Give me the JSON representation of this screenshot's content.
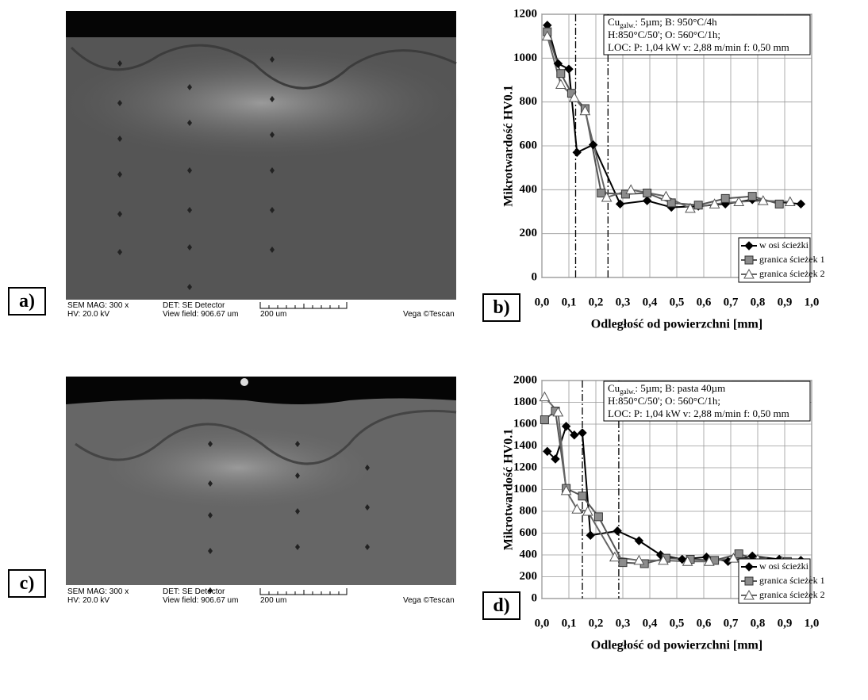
{
  "panel_labels": [
    "a)",
    "b)",
    "c)",
    "d)"
  ],
  "sem_images": [
    {
      "mag": "SEM MAG: 300 x",
      "det": "DET: SE Detector",
      "hv": "HV:  20.0 kV",
      "view_field": "View field: 906.67 um",
      "scale": "200 um",
      "brand": "Vega ©Tescan"
    },
    {
      "mag": "SEM MAG: 300 x",
      "det": "DET: SE Detector",
      "hv": "HV:  20.0 kV",
      "view_field": "View field: 906.67 um",
      "scale": "200 um",
      "brand": "Vega ©Tescan"
    }
  ],
  "chart_data": [
    {
      "type": "line",
      "ylabel": "Mikrotwardość HV0.1",
      "xlabel": "Odległość od powierzchni [mm]",
      "annotation": {
        "main": "Cu",
        "sub": "galw.",
        "line1": ": 5µm; B: 950°C/4h",
        "line2": "H:850°C/50'; O: 560°C/1h;",
        "line3": "LOC: P: 1,04 kW  v: 2,88 m/min f: 0,50 mm"
      },
      "xlim": [
        0,
        1
      ],
      "ylim": [
        0,
        1200
      ],
      "grid": true,
      "legend": "lower right",
      "xticks": [
        {
          "value": 0,
          "label": "0,0"
        },
        {
          "value": 0.1,
          "label": "0,1"
        },
        {
          "value": 0.2,
          "label": "0,2"
        },
        {
          "value": 0.3,
          "label": "0,3"
        },
        {
          "value": 0.4,
          "label": "0,4"
        },
        {
          "value": 0.5,
          "label": "0,5"
        },
        {
          "value": 0.6,
          "label": "0,6"
        },
        {
          "value": 0.7,
          "label": "0,7"
        },
        {
          "value": 0.8,
          "label": "0,8"
        },
        {
          "value": 0.9,
          "label": "0,9"
        },
        {
          "value": 1,
          "label": "1,0"
        }
      ],
      "yticks": [
        0,
        200,
        400,
        600,
        800,
        1000,
        1200
      ],
      "vlines": [
        0.125,
        0.245
      ],
      "series": [
        {
          "name": "w osi ścieżki",
          "color": "#000000",
          "marker": "diamond",
          "x": [
            0.02,
            0.06,
            0.1,
            0.13,
            0.19,
            0.29,
            0.39,
            0.48,
            0.58,
            0.68,
            0.78,
            0.96
          ],
          "values": [
            1150,
            975,
            950,
            570,
            605,
            335,
            350,
            320,
            325,
            335,
            355,
            335
          ]
        },
        {
          "name": "granica ścieżek 1",
          "color": "#555555",
          "marker": "square",
          "x": [
            0.02,
            0.07,
            0.11,
            0.16,
            0.22,
            0.31,
            0.39,
            0.48,
            0.58,
            0.68,
            0.78,
            0.88
          ],
          "values": [
            1120,
            930,
            840,
            770,
            385,
            380,
            385,
            340,
            330,
            360,
            370,
            335
          ]
        },
        {
          "name": "granica ścieżek 2",
          "color": "#666666",
          "marker": "triangle",
          "x": [
            0.02,
            0.07,
            0.12,
            0.16,
            0.24,
            0.33,
            0.46,
            0.55,
            0.64,
            0.73,
            0.82,
            0.92
          ],
          "values": [
            1100,
            880,
            820,
            760,
            365,
            400,
            370,
            315,
            335,
            345,
            350,
            345
          ]
        }
      ]
    },
    {
      "type": "line",
      "ylabel": "Mikrotwardość HV0.1",
      "xlabel": "Odległość od powierzchni [mm]",
      "annotation": {
        "main": "Cu",
        "sub": "galw.",
        "line1": ": 5µm; B: pasta 40µm",
        "line2": "H:850°C/50'; O: 560°C/1h;",
        "line3": "LOC: P: 1,04 kW  v: 2,88 m/min f: 0,50 mm"
      },
      "xlim": [
        0,
        1
      ],
      "ylim": [
        0,
        2000
      ],
      "grid": true,
      "legend": "lower right",
      "xticks": [
        {
          "value": 0,
          "label": "0,0"
        },
        {
          "value": 0.1,
          "label": "0,1"
        },
        {
          "value": 0.2,
          "label": "0,2"
        },
        {
          "value": 0.3,
          "label": "0,3"
        },
        {
          "value": 0.4,
          "label": "0,4"
        },
        {
          "value": 0.5,
          "label": "0,5"
        },
        {
          "value": 0.6,
          "label": "0,6"
        },
        {
          "value": 0.7,
          "label": "0,7"
        },
        {
          "value": 0.8,
          "label": "0,8"
        },
        {
          "value": 0.9,
          "label": "0,9"
        },
        {
          "value": 1,
          "label": "1,0"
        }
      ],
      "yticks": [
        0,
        200,
        400,
        600,
        800,
        1000,
        1200,
        1400,
        1600,
        1800,
        2000
      ],
      "vlines": [
        0.15,
        0.285
      ],
      "series": [
        {
          "name": "w osi ścieżki",
          "color": "#000000",
          "marker": "diamond",
          "x": [
            0.02,
            0.05,
            0.09,
            0.12,
            0.15,
            0.18,
            0.28,
            0.36,
            0.44,
            0.52,
            0.61,
            0.69,
            0.78,
            0.88,
            0.96
          ],
          "values": [
            1350,
            1280,
            1580,
            1500,
            1520,
            580,
            620,
            530,
            400,
            360,
            380,
            340,
            390,
            360,
            350
          ]
        },
        {
          "name": "granica ścieżek 1",
          "color": "#555555",
          "marker": "square",
          "x": [
            0.01,
            0.05,
            0.09,
            0.15,
            0.21,
            0.3,
            0.38,
            0.46,
            0.55,
            0.64,
            0.73,
            0.82,
            0.91
          ],
          "values": [
            1640,
            1720,
            1010,
            940,
            750,
            330,
            320,
            370,
            360,
            350,
            410,
            340,
            340
          ]
        },
        {
          "name": "granica ścieżek 2",
          "color": "#666666",
          "marker": "triangle",
          "x": [
            0.01,
            0.06,
            0.09,
            0.13,
            0.17,
            0.27,
            0.36,
            0.45,
            0.54,
            0.62,
            0.71,
            0.8,
            0.89
          ],
          "values": [
            1850,
            1710,
            990,
            820,
            800,
            380,
            350,
            350,
            340,
            340,
            370,
            360,
            340
          ]
        }
      ]
    }
  ]
}
